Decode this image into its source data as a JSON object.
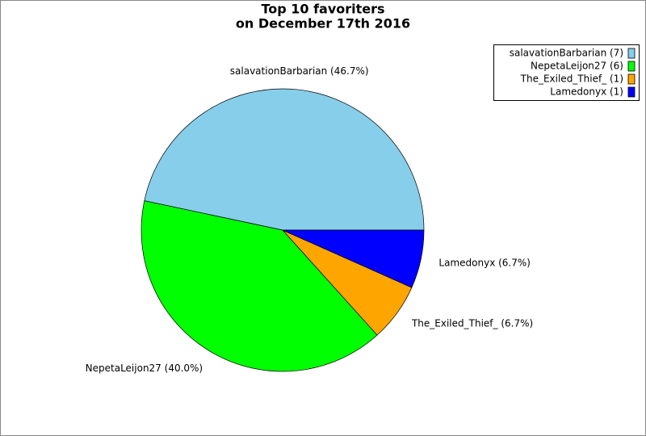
{
  "chart_data": {
    "type": "pie",
    "title": "Top 10 favoriters",
    "subtitle": "on December 17th 2016",
    "categories": [
      "salavationBarbarian (7)",
      "NepetaLeijon27 (6)",
      "The_Exiled_Thief_ (1)",
      "Lamedonyx (1)"
    ],
    "values": [
      7,
      6,
      1,
      1
    ],
    "value_labels": [
      "salavationBarbarian (46.7%)",
      "NepetaLeijon27 (40.0%)",
      "The_Exiled_Thief_ (6.7%)",
      "Lamedonyx (6.7%)"
    ],
    "colors": [
      "#87ceeb",
      "#00ff00",
      "#ffa500",
      "#0000ff"
    ],
    "legend": "upper right"
  }
}
